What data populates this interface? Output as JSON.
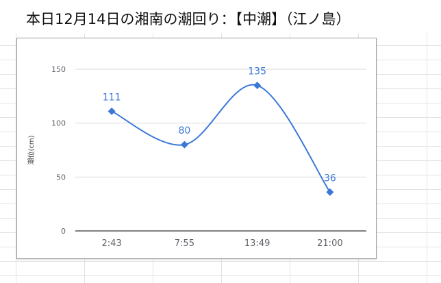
{
  "title": "本日12月14日の湘南の潮回り：【中潮】（江ノ島）",
  "chart_data": {
    "type": "line",
    "categories": [
      "2:43",
      "7:55",
      "13:49",
      "21:00"
    ],
    "series": [
      {
        "values": [
          111,
          80,
          135,
          36
        ]
      }
    ],
    "data_labels": [
      "111",
      "80",
      "135",
      "36"
    ],
    "ylabel": "潮位(cm)",
    "xlabel": "",
    "ylim": [
      0,
      150
    ],
    "yticks": [
      "0",
      "50",
      "100",
      "150"
    ],
    "grid": true,
    "line_color": "#3c78d8",
    "label_color": "#3c78d8",
    "marker": "diamond",
    "smooth": true
  }
}
